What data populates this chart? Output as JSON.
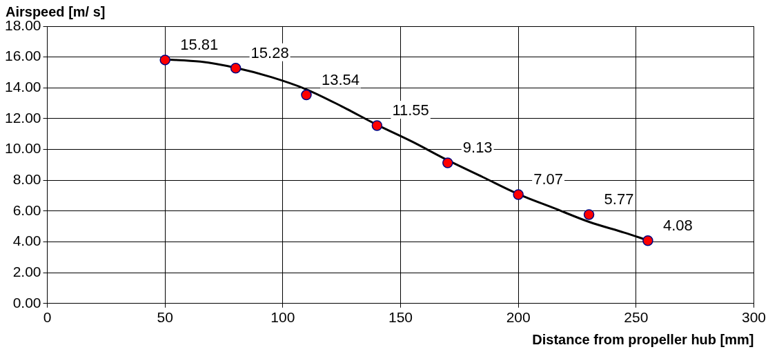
{
  "chart_data": {
    "type": "scatter",
    "xlabel": "Distance from propeller hub [mm]",
    "ylabel": "Airspeed [m/ s]",
    "xlim": [
      0,
      300
    ],
    "xticks": [
      0,
      50,
      100,
      150,
      200,
      250,
      300
    ],
    "ylim": [
      0,
      18
    ],
    "yticks": [
      {
        "value": 0,
        "label": "0.00"
      },
      {
        "value": 2,
        "label": "2.00"
      },
      {
        "value": 4,
        "label": "4.00"
      },
      {
        "value": 6,
        "label": "6.00"
      },
      {
        "value": 8,
        "label": "8.00"
      },
      {
        "value": 10,
        "label": "10.00"
      },
      {
        "value": 12,
        "label": "12.00"
      },
      {
        "value": 14,
        "label": "14.00"
      },
      {
        "value": 16,
        "label": "16.00"
      },
      {
        "value": 18,
        "label": "18.00"
      }
    ],
    "grid": true,
    "legend": false,
    "series": [
      {
        "color": "#ff0000",
        "marker": "circle",
        "x": [
          50,
          80,
          110,
          140,
          170,
          200,
          230,
          255
        ],
        "values": [
          15.81,
          15.28,
          13.54,
          11.55,
          9.13,
          7.07,
          5.77,
          4.08
        ],
        "value_labels": [
          "15.81",
          "15.28",
          "13.54",
          "11.55",
          "9.13",
          "7.07",
          "5.77",
          "4.08"
        ]
      },
      {
        "type": "line",
        "color": "#000000",
        "marker": "none",
        "x": [
          50,
          65,
          80,
          95,
          110,
          125,
          140,
          155,
          170,
          185,
          200,
          215,
          230,
          245,
          255
        ],
        "values": [
          15.85,
          15.7,
          15.3,
          14.7,
          13.9,
          12.8,
          11.6,
          10.5,
          9.3,
          8.2,
          7.1,
          6.2,
          5.3,
          4.6,
          4.1
        ]
      }
    ]
  }
}
